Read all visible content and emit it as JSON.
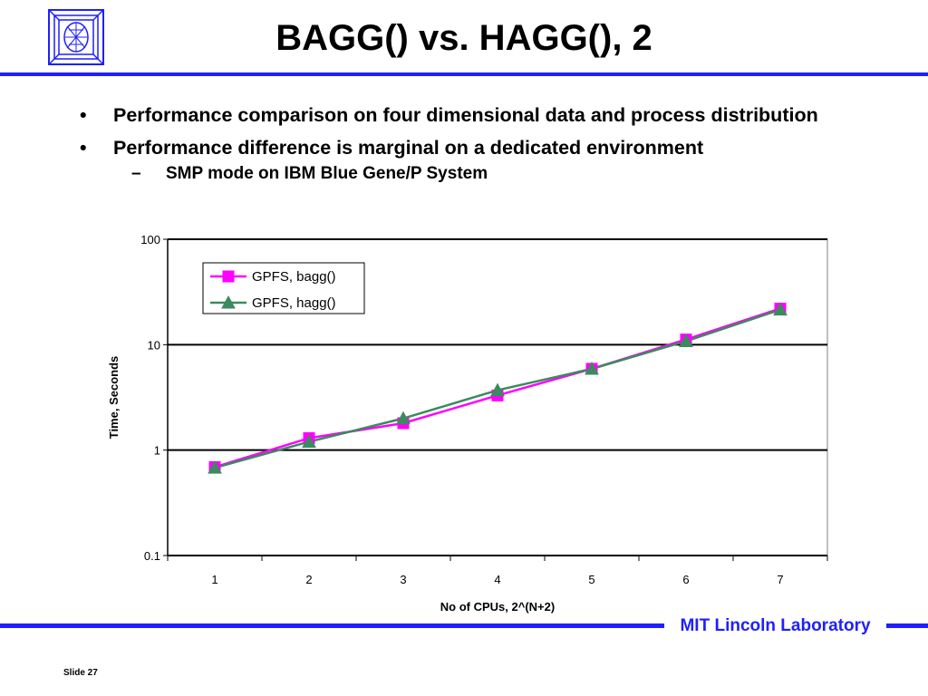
{
  "header": {
    "title": "BAGG() vs. HAGG(), 2"
  },
  "bullets": [
    {
      "text": "Performance comparison on four dimensional data and process distribution",
      "sub": []
    },
    {
      "text": "Performance difference is marginal on a dedicated environment",
      "sub": [
        "SMP mode on IBM Blue Gene/P System"
      ]
    }
  ],
  "footer": {
    "lab": "MIT Lincoln Laboratory",
    "slide": "Slide 27"
  },
  "colors": {
    "accent": "#1f1fff",
    "series_bagg": "#ff00ff",
    "series_hagg": "#3c8a5e"
  },
  "chart_data": {
    "type": "line",
    "title": "",
    "xlabel": "No of CPUs, 2^(N+2)",
    "ylabel": "Time, Seconds",
    "yscale": "log",
    "ylim": [
      0.1,
      100
    ],
    "yticks": [
      "0.1",
      "1",
      "10",
      "100"
    ],
    "categories": [
      "1",
      "2",
      "3",
      "4",
      "5",
      "6",
      "7"
    ],
    "grid": "major y gridlines",
    "legend_position": "top-left",
    "series": [
      {
        "name": "GPFS, bagg()",
        "marker": "square",
        "values": [
          0.69,
          1.3,
          1.8,
          3.3,
          5.9,
          11.2,
          22
        ]
      },
      {
        "name": "GPFS, hagg()",
        "marker": "triangle",
        "values": [
          0.68,
          1.2,
          2.0,
          3.7,
          5.9,
          10.8,
          21.5
        ]
      }
    ]
  }
}
